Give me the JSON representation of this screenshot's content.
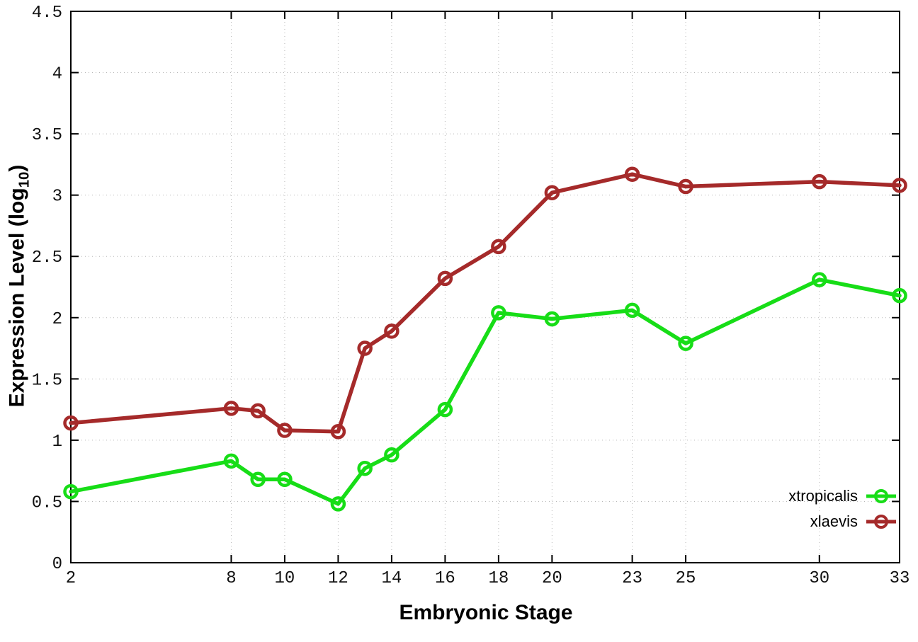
{
  "chart_data": {
    "type": "line",
    "title": "",
    "xlabel": "Embryonic Stage",
    "ylabel": "Expression Level (log10)",
    "ylabel_parts": {
      "pre": "Expression Level (log",
      "sub": "10",
      "post": ")"
    },
    "x": [
      2,
      8,
      9,
      10,
      12,
      13,
      14,
      16,
      18,
      20,
      23,
      25,
      30,
      33
    ],
    "series": [
      {
        "name": "xtropicalis",
        "color": "#17dd17",
        "values": [
          0.58,
          0.83,
          0.68,
          0.68,
          0.48,
          0.77,
          0.88,
          1.25,
          2.04,
          1.99,
          2.06,
          1.79,
          2.31,
          2.18
        ]
      },
      {
        "name": "xlaevis",
        "color": "#a52a2a",
        "values": [
          1.14,
          1.26,
          1.24,
          1.08,
          1.07,
          1.75,
          1.89,
          2.32,
          2.58,
          3.02,
          3.17,
          3.07,
          3.11,
          3.08
        ]
      }
    ],
    "x_ticks": [
      2,
      8,
      10,
      12,
      14,
      16,
      18,
      20,
      23,
      25,
      30,
      33
    ],
    "y_ticks": [
      0,
      0.5,
      1,
      1.5,
      2,
      2.5,
      3,
      3.5,
      4,
      4.5
    ],
    "xlim": [
      2,
      33
    ],
    "ylim": [
      0,
      4.5
    ],
    "grid": true,
    "grid_style": "dotted",
    "legend_position": "bottom-right-inside",
    "marker": "open-circle",
    "colors": {
      "grid": "#b8b8b8",
      "axis": "#000000",
      "tick_text": "#111111"
    }
  }
}
